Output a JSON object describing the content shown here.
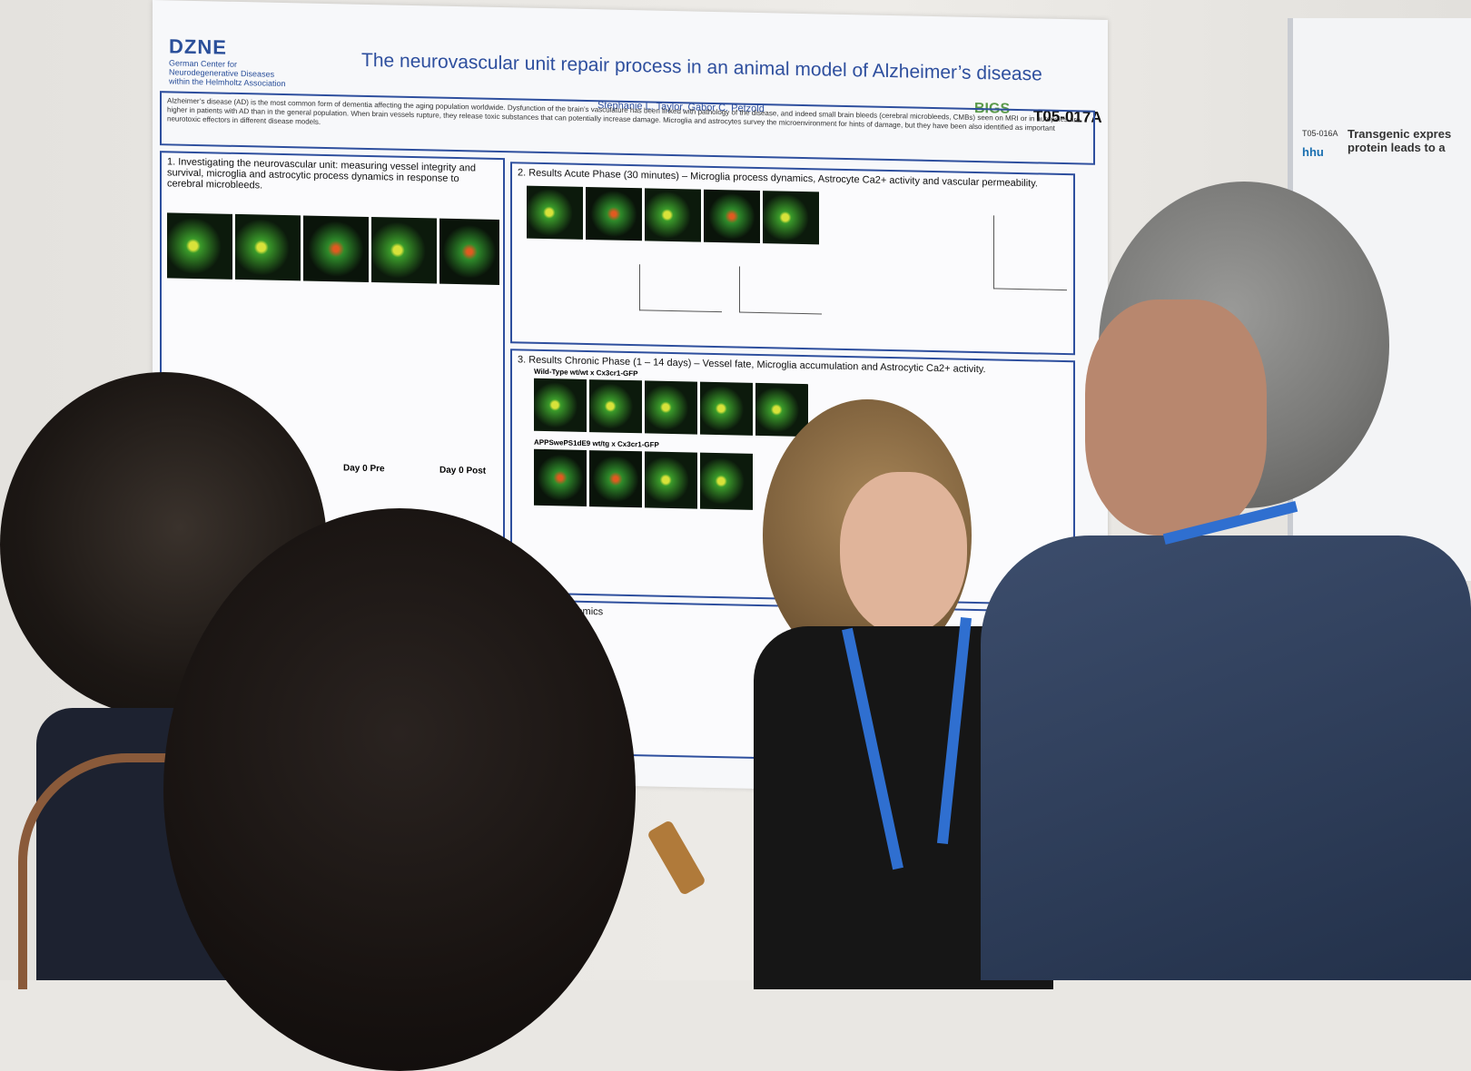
{
  "poster": {
    "logo": "DZNE",
    "logo_sub": "German Center for Neurodegenerative Diseases within the Helmholtz Association",
    "title": "The neurovascular unit repair process in an animal model of Alzheimer’s disease",
    "authors": "Stephanie L. Taylor, Gabor C. Petzold",
    "bigs": "BIGS",
    "code": "T05-017A",
    "intro": "Alzheimer’s disease (AD) is the most common form of dementia affecting the aging population worldwide. Dysfunction of the brain’s vasculature has been linked with pathology of the disease, and indeed small brain bleeds (cerebral microbleeds, CMBs) seen on MRI or in autopsies are higher in patients with AD than in the general population. When brain vessels rupture, they release toxic substances that can potentially increase damage. Microglia and astrocytes survey the microenvironment for hints of damage, but they have been also identified as important neurotoxic effectors in different disease models.",
    "section1": "1. Investigating the neurovascular unit: measuring vessel integrity and survival, microglia and astrocytic process dynamics in response to cerebral microbleeds.",
    "section2": "2. Results Acute Phase (30 minutes) – Microglia process dynamics, Astrocyte Ca2+ activity and vascular permeability.",
    "section3": "3. Results Chronic Phase (1 – 14 days) – Vessel fate, Microglia accumulation and Astrocytic Ca2+ activity.",
    "section4": "tial Transcriptomics",
    "label_day0pre": "Day 0 Pre",
    "label_day0post": "Day 0 Post",
    "label_wt": "Wild-Type wt/wt x Cx3cr1-GFP",
    "label_app": "APPSwePS1dE9 wt/tg x Cx3cr1-GFP"
  },
  "neighbor_poster": {
    "id": "T05-016A",
    "title": "Transgenic expres protein leads to a",
    "logo": "hhu"
  },
  "colors": {
    "poster_blue": "#2e4f9e",
    "lanyard_blue": "#2f6fd0"
  }
}
